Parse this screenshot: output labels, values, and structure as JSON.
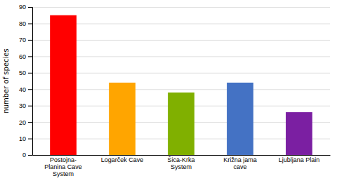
{
  "chart_data": {
    "type": "bar",
    "categories": [
      "Postojna-\nPlanina Cave\nSystem",
      "Logarček Cave",
      "Šica-Krka\nSystem",
      "Križna jama\ncave",
      "Ljubljana Plain"
    ],
    "values": [
      85,
      44,
      38,
      44,
      26
    ],
    "colors": [
      "#ff0000",
      "#ffa500",
      "#80b000",
      "#4472c4",
      "#7b1fa2"
    ],
    "ylabel": "number of species",
    "ylim": [
      0,
      90
    ],
    "yticks": [
      0,
      10,
      20,
      30,
      40,
      50,
      60,
      70,
      80,
      90
    ],
    "grid": true
  }
}
